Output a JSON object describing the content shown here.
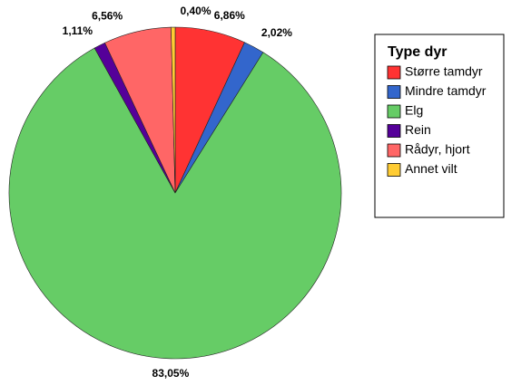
{
  "chart_data": {
    "type": "pie",
    "legend_title": "Type dyr",
    "categories": [
      "Større tamdyr",
      "Mindre tamdyr",
      "Elg",
      "Rein",
      "Rådyr, hjort",
      "Annet vilt"
    ],
    "values": [
      6.86,
      2.02,
      83.05,
      1.11,
      6.56,
      0.4
    ],
    "value_labels": [
      "6,86%",
      "2,02%",
      "83,05%",
      "1,11%",
      "6,56%",
      "0,40%"
    ],
    "colors": [
      "#ff3333",
      "#3366cc",
      "#66cc66",
      "#550099",
      "#ff6666",
      "#ffcc33"
    ],
    "legend": "right"
  }
}
